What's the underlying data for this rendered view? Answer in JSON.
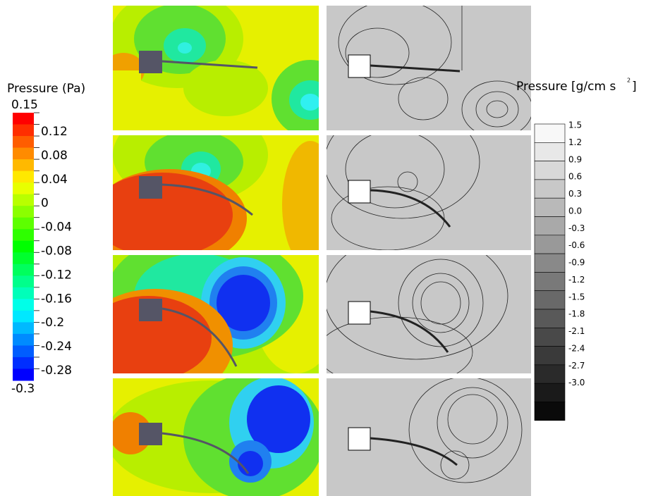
{
  "left_colorbar": {
    "title": "Pressure (Pa)",
    "labels": [
      "0.15",
      "0.12",
      "0.08",
      "0.04",
      "0",
      "-0.04",
      "-0.08",
      "-0.12",
      "-0.16",
      "-0.2",
      "-0.24",
      "-0.28",
      "-0.3"
    ]
  },
  "right_colorbar": {
    "title": "Pressure [g/cm s",
    "superscript": "2",
    "title_end": "]",
    "labels": [
      "1.5",
      "1.2",
      "0.9",
      "0.6",
      "0.3",
      "0.0",
      "-0.3",
      "-0.6",
      "-0.9",
      "-1.2",
      "-1.5",
      "-1.8",
      "-2.1",
      "-2.4",
      "-2.7",
      "-3.0"
    ]
  }
}
